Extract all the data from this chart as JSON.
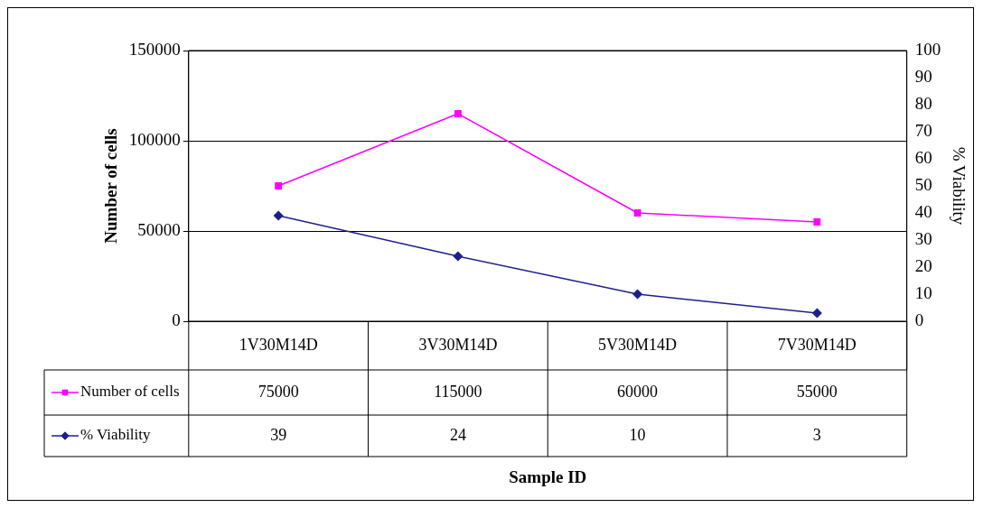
{
  "chart_data": {
    "type": "line",
    "categories": [
      "1V30M14D",
      "3V30M14D",
      "5V30M14D",
      "7V30M14D"
    ],
    "series": [
      {
        "name": "Number of cells",
        "color": "#ff00ff",
        "values": [
          75000,
          115000,
          60000,
          55000
        ],
        "marker": "square"
      },
      {
        "name": "% Viability",
        "color": "#1f1f8c",
        "values": [
          39,
          24,
          10,
          3
        ],
        "axis": "y2",
        "marker": "diamond"
      }
    ],
    "annotations": [
      "Sample ID"
    ],
    "ylabel": "Number of cells",
    "y2label": "% Viability",
    "ylim": [
      0,
      150000
    ],
    "yticks": [
      0,
      50000,
      100000,
      150000
    ],
    "y2lim": [
      0,
      100
    ],
    "y2ticks": [
      0,
      10,
      20,
      30,
      40,
      50,
      60,
      70,
      80,
      90,
      100
    ],
    "grid": "y",
    "legend": "bottom",
    "data_labels": true,
    "line_style": "solid"
  }
}
